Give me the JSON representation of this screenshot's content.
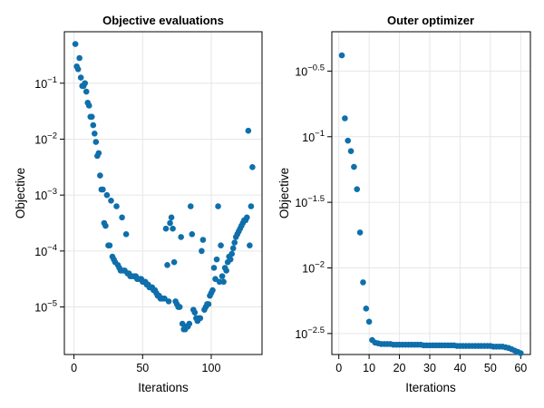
{
  "chart_data": [
    {
      "type": "scatter",
      "title": "Objective evaluations",
      "xlabel": "Iterations",
      "ylabel": "Objective",
      "yscale": "log10",
      "xlim": [
        -7,
        137
      ],
      "ylim_log10": [
        -5.85,
        -0.08
      ],
      "xticks": [
        0,
        50,
        100
      ],
      "yticks_log10": [
        -1,
        -2,
        -3,
        -4,
        -5
      ],
      "grid": true,
      "color": "#0f6fab",
      "series": [
        {
          "name": "",
          "x": [
            1,
            2,
            3,
            4,
            5,
            6,
            7,
            8,
            9,
            10,
            11,
            12,
            13,
            14,
            15,
            16,
            17,
            18,
            19,
            20,
            21,
            22,
            23,
            24,
            25,
            26,
            27,
            28,
            29,
            30,
            31,
            32,
            33,
            34,
            35,
            36,
            37,
            38,
            39,
            40,
            41,
            42,
            43,
            44,
            45,
            46,
            47,
            48,
            49,
            50,
            51,
            52,
            53,
            54,
            55,
            56,
            57,
            58,
            59,
            60,
            61,
            62,
            63,
            64,
            65,
            66,
            67,
            68,
            69,
            70,
            71,
            72,
            73,
            74,
            75,
            76,
            77,
            78,
            79,
            80,
            81,
            82,
            83,
            84,
            85,
            86,
            87,
            88,
            89,
            90,
            91,
            92,
            93,
            94,
            95,
            96,
            97,
            98,
            99,
            100,
            101,
            102,
            103,
            104,
            105,
            106,
            107,
            108,
            109,
            110,
            111,
            112,
            113,
            114,
            115,
            116,
            117,
            118,
            119,
            120,
            121,
            122,
            123,
            124,
            125,
            126,
            127,
            128,
            129,
            130
          ],
          "y_log10": [
            -0.3,
            -0.7,
            -0.75,
            -0.55,
            -0.9,
            -1.05,
            -1.05,
            -1.0,
            -1.15,
            -1.35,
            -1.4,
            -1.6,
            -1.6,
            -1.75,
            -1.9,
            -2.05,
            -2.3,
            -2.25,
            -2.65,
            -2.9,
            -2.9,
            -3.5,
            -3.55,
            -3.0,
            -3.9,
            -3.9,
            -3.1,
            -4.1,
            -4.15,
            -4.2,
            -3.2,
            -4.25,
            -4.3,
            -4.35,
            -3.4,
            -4.35,
            -4.35,
            -3.7,
            -4.4,
            -4.4,
            -4.45,
            -4.45,
            -4.45,
            -4.45,
            -4.45,
            -4.5,
            -4.5,
            -4.5,
            -4.5,
            -4.55,
            -4.55,
            -4.55,
            -4.6,
            -4.6,
            -4.65,
            -4.65,
            -4.65,
            -4.7,
            -4.7,
            -4.75,
            -4.8,
            -4.8,
            -4.85,
            -4.85,
            -4.85,
            -4.85,
            -3.6,
            -4.25,
            -4.9,
            -3.5,
            -3.4,
            -3.6,
            -4.2,
            -4.9,
            -4.95,
            -5.0,
            -5.0,
            -3.75,
            -5.3,
            -5.4,
            -5.4,
            -5.35,
            -5.35,
            -5.3,
            -3.2,
            -3.7,
            -5.05,
            -5.1,
            -5.2,
            -5.25,
            -5.2,
            -5.2,
            -4.0,
            -3.8,
            -5.05,
            -5.0,
            -4.95,
            -4.95,
            -4.8,
            -4.75,
            -4.7,
            -4.3,
            -4.5,
            -4.15,
            -3.2,
            -4.55,
            -3.9,
            -4.45,
            -4.55,
            -4.3,
            -4.35,
            -4.2,
            -4.1,
            -4.15,
            -4.05,
            -3.95,
            -3.85,
            -3.75,
            -3.7,
            -3.65,
            -3.6,
            -3.55,
            -3.5,
            -3.45,
            -3.45,
            -3.4,
            -1.85,
            -3.9,
            -3.2,
            -2.5
          ],
          "note_x_of_last_two_flipped": false
        }
      ]
    },
    {
      "type": "scatter",
      "title": "Outer optimizer",
      "xlabel": "Iterations",
      "ylabel": "Objective",
      "yscale": "log10",
      "xlim": [
        -2.3,
        63.2
      ],
      "ylim_log10": [
        -2.66,
        -0.2
      ],
      "xticks": [
        0,
        10,
        20,
        30,
        40,
        50,
        60
      ],
      "yticks_log10": [
        -0.5,
        -1.0,
        -1.5,
        -2.0,
        -2.5
      ],
      "grid": true,
      "color": "#0f6fab",
      "series": [
        {
          "name": "",
          "x": [
            1,
            2,
            3,
            4,
            5,
            6,
            7,
            8,
            9,
            10,
            11,
            12,
            13,
            14,
            15,
            16,
            17,
            18,
            19,
            20,
            21,
            22,
            23,
            24,
            25,
            26,
            27,
            28,
            29,
            30,
            31,
            32,
            33,
            34,
            35,
            36,
            37,
            38,
            39,
            40,
            41,
            42,
            43,
            44,
            45,
            46,
            47,
            48,
            49,
            50,
            51,
            52,
            53,
            54,
            55,
            56,
            57,
            58,
            59,
            60
          ],
          "y_log10": [
            -0.38,
            -0.86,
            -1.03,
            -1.11,
            -1.23,
            -1.4,
            -1.73,
            -2.11,
            -2.31,
            -2.41,
            -2.55,
            -2.57,
            -2.575,
            -2.58,
            -2.58,
            -2.58,
            -2.58,
            -2.585,
            -2.585,
            -2.585,
            -2.585,
            -2.585,
            -2.585,
            -2.585,
            -2.585,
            -2.585,
            -2.585,
            -2.59,
            -2.59,
            -2.59,
            -2.59,
            -2.59,
            -2.59,
            -2.59,
            -2.59,
            -2.59,
            -2.59,
            -2.59,
            -2.595,
            -2.595,
            -2.595,
            -2.595,
            -2.595,
            -2.595,
            -2.595,
            -2.595,
            -2.595,
            -2.595,
            -2.595,
            -2.595,
            -2.6,
            -2.6,
            -2.6,
            -2.6,
            -2.605,
            -2.61,
            -2.62,
            -2.63,
            -2.64,
            -2.65
          ]
        }
      ]
    }
  ]
}
